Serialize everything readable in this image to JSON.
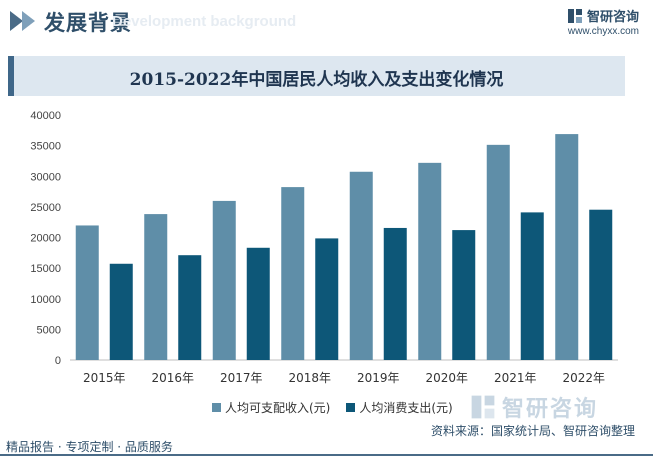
{
  "header": {
    "section_title": "发展背景",
    "section_subtitle": "Development background",
    "brand_name": "智研咨询",
    "brand_url": "www.chyxx.com",
    "logo_icon": "chyxx-logo-icon"
  },
  "chart_data": {
    "type": "bar",
    "title": "2015-2022年中国居民人均收入及支出变化情况",
    "categories": [
      "2015年",
      "2016年",
      "2017年",
      "2018年",
      "2019年",
      "2020年",
      "2021年",
      "2022年"
    ],
    "series": [
      {
        "name": "人均可支配收入(元)",
        "color": "#5f8ea8",
        "values": [
          21966,
          23821,
          25974,
          28228,
          30733,
          32189,
          35128,
          36883
        ]
      },
      {
        "name": "人均消费支出(元)",
        "color": "#0d5778",
        "values": [
          15712,
          17111,
          18322,
          19853,
          21559,
          21210,
          24100,
          24538
        ]
      }
    ],
    "ylim": [
      0,
      40000
    ],
    "yticks": [
      0,
      5000,
      10000,
      15000,
      20000,
      25000,
      30000,
      35000,
      40000
    ],
    "grid": false,
    "legend_position": "bottom"
  },
  "watermark": {
    "text": "智研咨询"
  },
  "source": "资料来源：国家统计局、智研咨询整理",
  "footer": {
    "text": "精品报告 · 专项定制 · 品质服务"
  }
}
